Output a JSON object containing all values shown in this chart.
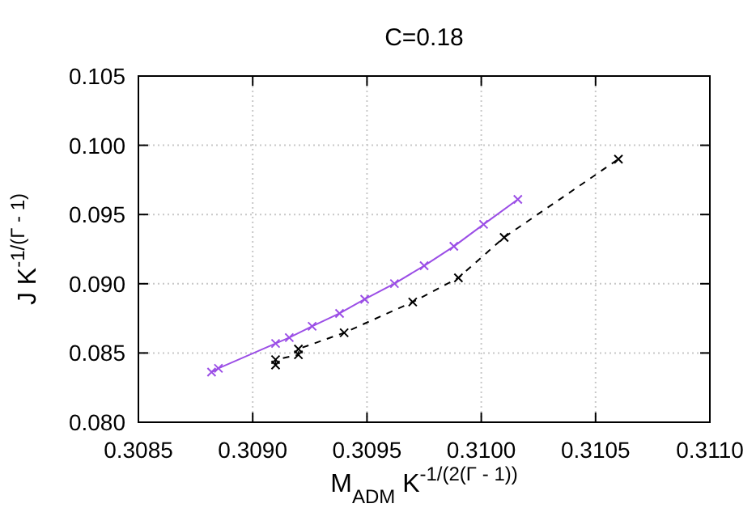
{
  "chart_data": {
    "type": "line",
    "title": "C=0.18",
    "xlabel": "M$_{ADM}$ K$^{-1/(2(Γ - 1))}$",
    "ylabel": "J K$^{-1/(Γ - 1)}$",
    "xlim": [
      0.3085,
      0.311
    ],
    "xticks": [
      {
        "value": 0.3085,
        "label": "0.3085"
      },
      {
        "value": 0.309,
        "label": "0.3090"
      },
      {
        "value": 0.3095,
        "label": "0.3095"
      },
      {
        "value": 0.31,
        "label": "0.3100"
      },
      {
        "value": 0.3105,
        "label": "0.3105"
      },
      {
        "value": 0.311,
        "label": "0.3110"
      }
    ],
    "ylim": [
      0.08,
      0.105
    ],
    "yticks": [
      {
        "value": 0.08,
        "label": "0.080"
      },
      {
        "value": 0.085,
        "label": "0.085"
      },
      {
        "value": 0.09,
        "label": "0.090"
      },
      {
        "value": 0.095,
        "label": "0.095"
      },
      {
        "value": 0.1,
        "label": "0.100"
      },
      {
        "value": 0.105,
        "label": "0.105"
      }
    ],
    "grid": true,
    "marker": "cross",
    "series": [
      {
        "color": "#9b4ee6",
        "line_style": "solid",
        "x": [
          0.30882,
          0.30885,
          0.3091,
          0.30916,
          0.30926,
          0.30938,
          0.30949,
          0.30962,
          0.30975,
          0.30988,
          0.31001,
          0.31016
        ],
        "values": [
          0.08362,
          0.08389,
          0.08569,
          0.08611,
          0.08693,
          0.08786,
          0.08888,
          0.09001,
          0.0913,
          0.0927,
          0.09429,
          0.09609
        ]
      },
      {
        "color": "#000000",
        "line_style": "dashed",
        "x": [
          0.3091,
          0.3091,
          0.3092,
          0.3092,
          0.3094,
          0.3097,
          0.3099,
          0.3101,
          0.3106
        ],
        "values": [
          0.08413,
          0.08452,
          0.08487,
          0.08529,
          0.08646,
          0.08868,
          0.09043,
          0.09335,
          0.099
        ]
      }
    ]
  }
}
